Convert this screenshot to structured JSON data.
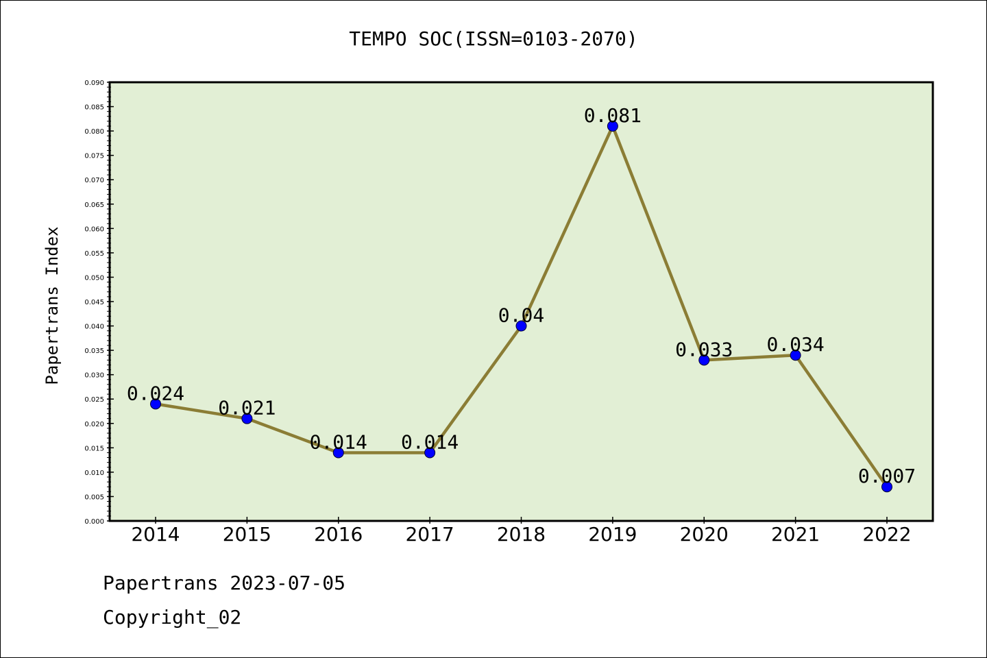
{
  "chart_data": {
    "type": "line",
    "title": "TEMPO SOC(ISSN=0103-2070)",
    "xlabel": "",
    "ylabel": "Papertrans Index",
    "categories": [
      "2014",
      "2015",
      "2016",
      "2017",
      "2018",
      "2019",
      "2020",
      "2021",
      "2022"
    ],
    "values": [
      0.024,
      0.021,
      0.014,
      0.014,
      0.04,
      0.081,
      0.033,
      0.034,
      0.007
    ],
    "data_labels": [
      "0.024",
      "0.021",
      "0.014",
      "0.014",
      "0.04",
      "0.081",
      "0.033",
      "0.034",
      "0.007"
    ],
    "ylim": [
      0,
      0.09
    ],
    "yticks": [
      "0.000",
      "0.005",
      "0.010",
      "0.015",
      "0.020",
      "0.025",
      "0.030",
      "0.035",
      "0.040",
      "0.045",
      "0.050",
      "0.055",
      "0.060",
      "0.065",
      "0.070",
      "0.075",
      "0.080",
      "0.085",
      "0.090"
    ],
    "grid": false,
    "colors": {
      "plot_background": "#e2efd5",
      "line": "#8b7d35",
      "marker": "#0000ff"
    }
  },
  "footer": {
    "date_line": "Papertrans 2023-07-05",
    "copyright_line": "Copyright_02"
  }
}
